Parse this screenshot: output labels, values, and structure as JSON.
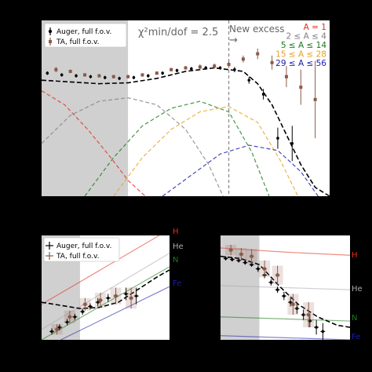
{
  "colors": {
    "background": "#000000",
    "panel": "#ffffff",
    "shade": "#c8c8c8",
    "auger": "#000000",
    "ta": "#8b5a4a",
    "fit": "#000000",
    "divider": "#888888",
    "A1": "#e0301e",
    "A2_4": "#808080",
    "A5_14": "#1a7a1a",
    "A15_28": "#e8a020",
    "A29_56": "#1c1caa"
  },
  "chart_data": [
    {
      "type": "scatter",
      "panel": "top",
      "title": "",
      "xlabel": "",
      "ylabel": "",
      "xlim": [
        0,
        100
      ],
      "ylim": [
        0,
        100
      ],
      "grid": false,
      "legend_position": "top-left",
      "shaded_region": [
        0,
        30
      ],
      "divider_x": 65,
      "annotations": {
        "chi2": "χ²min/dof = 2.5",
        "excess": "New excess",
        "excess_arrow": "→"
      },
      "mass_legend": [
        {
          "label": "A = 1",
          "color": "#e0301e"
        },
        {
          "label": "2 ≤ A ≤ 4",
          "color": "#808080"
        },
        {
          "label": "5 ≤ A ≤ 14",
          "color": "#1a7a1a"
        },
        {
          "label": "15 ≤ A ≤ 28",
          "color": "#e8a020"
        },
        {
          "label": "29 ≤ A ≤ 56",
          "color": "#1c1caa"
        }
      ],
      "series": [
        {
          "name": "Auger, full f.o.v.",
          "kind": "points",
          "x": [
            2,
            7,
            12,
            17,
            22,
            27,
            32,
            37,
            42,
            47,
            52,
            57,
            62,
            67,
            72,
            77,
            82,
            87
          ],
          "y": [
            70,
            69,
            68.5,
            68,
            67.5,
            67,
            67.5,
            68.5,
            70,
            71.5,
            72.5,
            73,
            73,
            72,
            66,
            58,
            33,
            30
          ],
          "err": [
            1,
            1,
            1,
            1,
            1,
            1,
            1,
            1,
            1,
            1,
            1,
            1,
            1,
            1.5,
            2,
            3,
            6,
            10
          ]
        },
        {
          "name": "TA, full f.o.v.",
          "kind": "points",
          "x": [
            5,
            10,
            15,
            20,
            25,
            30,
            35,
            40,
            45,
            50,
            55,
            60,
            65,
            70,
            75,
            80,
            85,
            90,
            95
          ],
          "y": [
            72,
            71,
            69,
            68.5,
            68,
            68,
            69,
            70,
            72,
            73,
            73.5,
            74,
            75,
            78,
            81,
            76,
            68,
            62,
            55
          ],
          "err": [
            1.5,
            1,
            1,
            1,
            1,
            1,
            1,
            1,
            1,
            1,
            1.5,
            1.5,
            2,
            2,
            3,
            4,
            6,
            10,
            22
          ]
        },
        {
          "name": "",
          "kind": "fit",
          "x": [
            0,
            10,
            20,
            30,
            40,
            50,
            60,
            70,
            75,
            80,
            85,
            90,
            95,
            100
          ],
          "y": [
            66,
            65,
            64,
            64.5,
            67,
            71,
            73,
            71,
            64,
            52,
            35,
            18,
            5,
            0
          ]
        },
        {
          "name": "",
          "kind": "component",
          "color": "#e0301e",
          "x": [
            0,
            8,
            16,
            24,
            30,
            36
          ],
          "y": [
            60,
            52,
            38,
            22,
            9,
            0
          ]
        },
        {
          "name": "",
          "kind": "component",
          "color": "#808080",
          "x": [
            0,
            10,
            20,
            30,
            40,
            50,
            58,
            63
          ],
          "y": [
            30,
            46,
            54,
            56,
            52,
            38,
            18,
            0
          ]
        },
        {
          "name": "",
          "kind": "component",
          "color": "#1a7a1a",
          "x": [
            15,
            25,
            35,
            45,
            55,
            65,
            73,
            79
          ],
          "y": [
            0,
            22,
            40,
            50,
            54,
            48,
            25,
            0
          ]
        },
        {
          "name": "",
          "kind": "component",
          "color": "#e8a020",
          "x": [
            25,
            35,
            45,
            55,
            65,
            75,
            83,
            89
          ],
          "y": [
            0,
            22,
            38,
            48,
            51,
            42,
            20,
            0
          ]
        },
        {
          "name": "",
          "kind": "component",
          "color": "#1c1caa",
          "x": [
            42,
            52,
            62,
            72,
            82,
            90,
            96
          ],
          "y": [
            0,
            12,
            24,
            29,
            26,
            14,
            0
          ]
        }
      ]
    },
    {
      "type": "scatter",
      "panel": "bottom-left",
      "title": "",
      "xlabel": "",
      "ylabel": "",
      "xlim": [
        0,
        100
      ],
      "ylim": [
        0,
        100
      ],
      "grid": false,
      "legend_position": "top-left",
      "shaded_region": [
        0,
        30
      ],
      "reference_lines": [
        {
          "label": "H",
          "color": "#e0301e",
          "x": [
            0,
            92
          ],
          "y": [
            34,
            100
          ]
        },
        {
          "label": "He",
          "color": "#aaaaaa",
          "x": [
            0,
            100
          ],
          "y": [
            10,
            83
          ]
        },
        {
          "label": "N",
          "color": "#1a7a1a",
          "x": [
            0,
            100
          ],
          "y": [
            0,
            70
          ]
        },
        {
          "label": "Fe",
          "color": "#1c1caa",
          "x": [
            15,
            100
          ],
          "y": [
            0,
            51
          ]
        }
      ],
      "series": [
        {
          "name": "Auger, full f.o.v.",
          "kind": "points",
          "x": [
            8,
            14,
            20,
            26,
            32,
            38,
            44,
            52,
            58,
            66,
            74
          ],
          "y": [
            8,
            12,
            17,
            22,
            27,
            32,
            36,
            40,
            42,
            44,
            42
          ],
          "err": [
            3,
            3,
            3,
            3,
            3,
            3,
            4,
            4,
            5,
            6,
            8
          ]
        },
        {
          "name": "TA, full f.o.v.",
          "kind": "points",
          "x": [
            12,
            22,
            34,
            46,
            58,
            70
          ],
          "y": [
            10,
            22,
            34,
            38,
            42,
            40
          ],
          "err": [
            5,
            6,
            6,
            7,
            8,
            10
          ]
        },
        {
          "name": "",
          "kind": "fit",
          "x": [
            0,
            15,
            30,
            45,
            60,
            75,
            90,
            100
          ],
          "y": [
            36,
            33,
            30,
            31,
            36,
            48,
            60,
            67
          ]
        }
      ]
    },
    {
      "type": "scatter",
      "panel": "bottom-right",
      "title": "",
      "xlabel": "",
      "ylabel": "",
      "xlim": [
        0,
        100
      ],
      "ylim": [
        0,
        100
      ],
      "grid": false,
      "shaded_region": [
        0,
        30
      ],
      "reference_lines": [
        {
          "label": "H",
          "color": "#e0301e",
          "x": [
            0,
            50,
            100
          ],
          "y": [
            88,
            84,
            81
          ]
        },
        {
          "label": "He",
          "color": "#aaaaaa",
          "x": [
            0,
            50,
            100
          ],
          "y": [
            52,
            50,
            48
          ]
        },
        {
          "label": "N",
          "color": "#1a7a1a",
          "x": [
            0,
            50,
            100
          ],
          "y": [
            22,
            20,
            18
          ]
        },
        {
          "label": "Fe",
          "color": "#1c1caa",
          "x": [
            0,
            50,
            100
          ],
          "y": [
            4,
            2,
            0
          ]
        }
      ],
      "series": [
        {
          "name": "Auger, full f.o.v.",
          "kind": "points",
          "x": [
            4,
            9,
            14,
            19,
            24,
            29,
            34,
            39,
            44,
            49,
            54,
            59,
            64,
            69,
            74,
            79
          ],
          "y": [
            78,
            77,
            76,
            74,
            72,
            68,
            62,
            55,
            48,
            42,
            36,
            30,
            24,
            18,
            12,
            8
          ],
          "err": [
            2,
            2,
            2,
            2,
            2,
            3,
            3,
            3,
            3,
            4,
            4,
            5,
            5,
            6,
            7,
            8
          ]
        },
        {
          "name": "TA, full f.o.v.",
          "kind": "points",
          "x": [
            8,
            16,
            24,
            34,
            44,
            56,
            68
          ],
          "y": [
            86,
            82,
            80,
            68,
            62,
            34,
            24
          ],
          "err": [
            5,
            6,
            7,
            8,
            9,
            10,
            12
          ]
        },
        {
          "name": "",
          "kind": "fit",
          "x": [
            0,
            15,
            30,
            45,
            60,
            75,
            90,
            100
          ],
          "y": [
            80,
            78,
            72,
            52,
            34,
            22,
            14,
            12
          ]
        }
      ]
    }
  ]
}
